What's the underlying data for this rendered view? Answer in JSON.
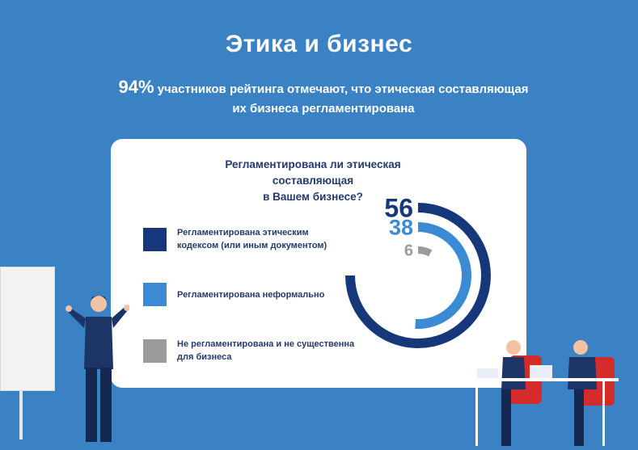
{
  "header": {
    "title": "Этика и бизнес",
    "highlight": "94%",
    "subtitle_line1": "участников рейтинга отмечают, что этическая  составляющая",
    "subtitle_line2": "их бизнеса регламентирована"
  },
  "card": {
    "question_line1": "Регламентирована ли этическая составляющая",
    "question_line2": "в Вашем бизнесе?"
  },
  "chart_data": {
    "type": "pie",
    "title": "Регламентирована ли этическая составляющая в Вашем бизнесе?",
    "categories": [
      "Регламентирована этическим кодексом (или иным документом)",
      "Регламентирована неформально",
      "Не регламентирована и не существенна для бизнеса"
    ],
    "values": [
      56,
      38,
      6
    ],
    "value_labels": [
      "56",
      "38",
      "6"
    ],
    "colors": [
      "#16387a",
      "#3b8ad4",
      "#9b9b9b"
    ],
    "legend_lines": [
      [
        "Регламентирована этическим",
        "кодексом (или иным документом)"
      ],
      [
        "Регламентирована неформально"
      ],
      [
        "Не регламентирована и не существенна",
        "для бизнеса"
      ]
    ],
    "legend_position": "left",
    "grid": false
  }
}
